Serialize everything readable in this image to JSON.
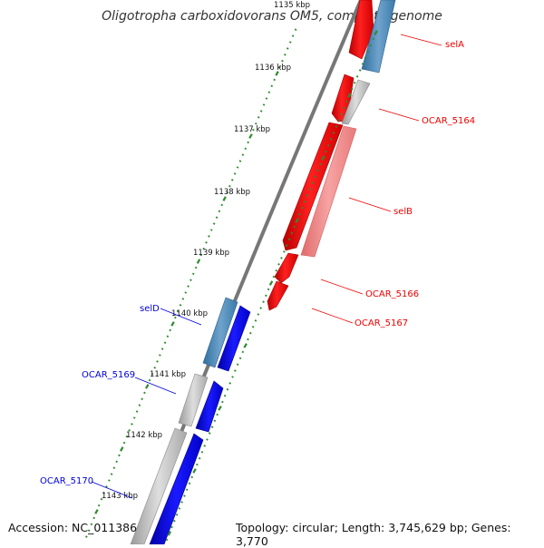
{
  "title": "Oligotropha carboxidovorans OM5, complete genome",
  "footer": {
    "accession": "Accession: NC_011386",
    "topology": "Topology: circular; Length: 3,745,629 bp; Genes: 3,770"
  },
  "colors": {
    "backbone": "#8c8c8c",
    "forward_strand": "#ff0000",
    "forward_light": "#f28c8c",
    "reverse_strand": "#0000ee",
    "reverse_light": "#4a86b8",
    "gray_gene": "#b8b8b8",
    "tick": "#2e8b2e"
  },
  "ticks": [
    {
      "label": "1135 kbp"
    },
    {
      "label": "1136 kbp"
    },
    {
      "label": "1137 kbp"
    },
    {
      "label": "1138 kbp"
    },
    {
      "label": "1139 kbp"
    },
    {
      "label": "1140 kbp"
    },
    {
      "label": "1141 kbp"
    },
    {
      "label": "1142 kbp"
    },
    {
      "label": "1143 kbp"
    }
  ],
  "genes_forward": [
    {
      "label": "selA",
      "color": "red"
    },
    {
      "label": "OCAR_5164",
      "color": "red"
    },
    {
      "label": "selB",
      "color": "red"
    },
    {
      "label": "OCAR_5166",
      "color": "red"
    },
    {
      "label": "OCAR_5167",
      "color": "red"
    }
  ],
  "genes_reverse": [
    {
      "label": "selD",
      "color": "blue"
    },
    {
      "label": "OCAR_5169",
      "color": "blue"
    },
    {
      "label": "OCAR_5170",
      "color": "blue"
    }
  ]
}
